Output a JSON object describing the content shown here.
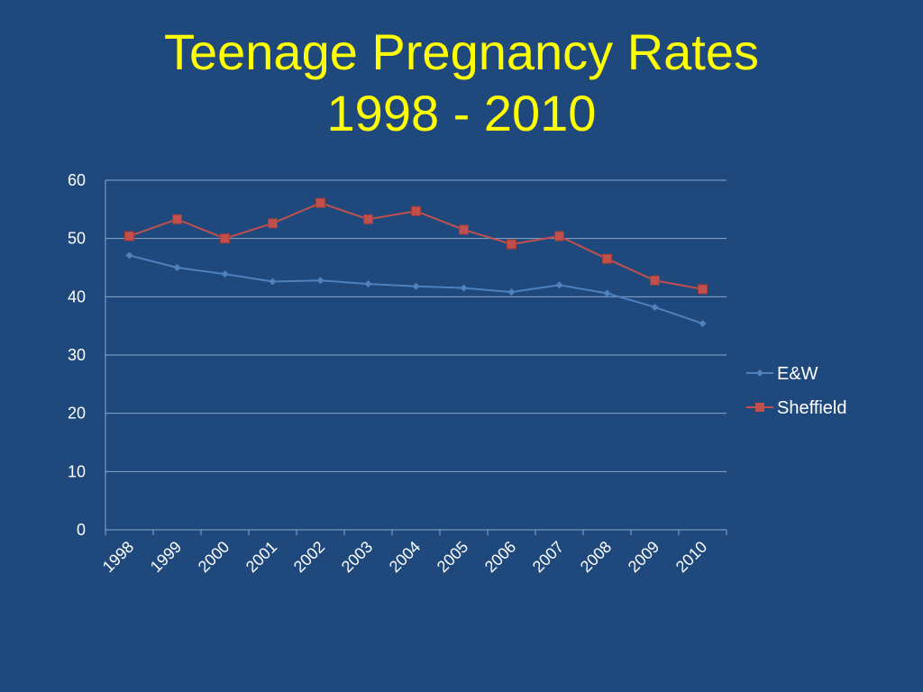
{
  "title": {
    "line1": "Teenage Pregnancy Rates",
    "line2": "1998 - 2010"
  },
  "chart_data": {
    "type": "line",
    "x": [
      "1998",
      "1999",
      "2000",
      "2001",
      "2002",
      "2003",
      "2004",
      "2005",
      "2006",
      "2007",
      "2008",
      "2009",
      "2010"
    ],
    "series": [
      {
        "name": "E&W",
        "color": "#4f81bd",
        "marker": "diamond",
        "values": [
          47.1,
          45.0,
          43.9,
          42.6,
          42.8,
          42.2,
          41.8,
          41.5,
          40.8,
          42.0,
          40.6,
          38.2,
          35.4
        ]
      },
      {
        "name": "Sheffield",
        "color": "#c0504d",
        "marker": "square",
        "values": [
          50.4,
          53.3,
          50.0,
          52.6,
          56.1,
          53.3,
          54.7,
          51.5,
          49.0,
          50.4,
          46.5,
          42.8,
          41.3
        ]
      }
    ],
    "yticks": [
      "0",
      "10",
      "20",
      "30",
      "40",
      "50",
      "60"
    ],
    "ylim": [
      0,
      60
    ],
    "grid": true,
    "legend_position": "right"
  }
}
